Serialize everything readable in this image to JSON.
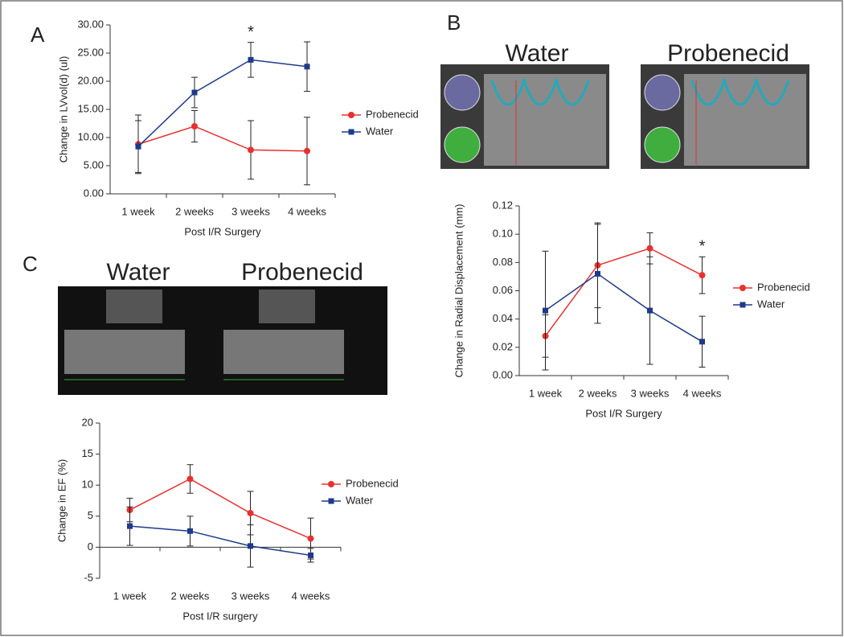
{
  "panels": {
    "labels": [
      "A",
      "B",
      "C"
    ],
    "b_images": [
      "Water",
      "Probenecid"
    ],
    "c_images": [
      "Water",
      "Probenecid"
    ]
  },
  "chart_data": [
    {
      "type": "line",
      "ylabel": "Change in LVvol(d) (ul)",
      "xlabel": "Post I/R Surgery",
      "categories": [
        "1 week",
        "2 weeks",
        "3 weeks",
        "4 weeks"
      ],
      "ylim": [
        0,
        30
      ],
      "yticks": [
        {
          "value": 0,
          "label": "0.00"
        },
        {
          "value": 5,
          "label": "5.00"
        },
        {
          "value": 10,
          "label": "10.00"
        },
        {
          "value": 15,
          "label": "15.00"
        },
        {
          "value": 20,
          "label": "20.00"
        },
        {
          "value": 25,
          "label": "25.00"
        },
        {
          "value": 30,
          "label": "30.00"
        }
      ],
      "legend": "right",
      "annotations": [
        {
          "text": "*",
          "x": "3 weeks"
        }
      ],
      "series": [
        {
          "name": "Probenecid",
          "color": "#e8312f",
          "marker": "circle",
          "values": [
            8.8,
            12.0,
            7.8,
            7.6
          ],
          "errors": [
            5.2,
            2.8,
            5.2,
            6.0
          ]
        },
        {
          "name": "Water",
          "color": "#1f3a8a",
          "marker": "square",
          "values": [
            8.4,
            18.0,
            23.8,
            22.6
          ],
          "errors": [
            4.6,
            2.7,
            3.1,
            4.4
          ]
        }
      ]
    },
    {
      "type": "line",
      "ylabel": "Change in Radial Displacement (mm)",
      "xlabel": "Post I/R Surgery",
      "categories": [
        "1 week",
        "2 weeks",
        "3 weeks",
        "4 weeks"
      ],
      "ylim": [
        0,
        0.12
      ],
      "yticks": [
        {
          "value": 0,
          "label": "0.00"
        },
        {
          "value": 0.02,
          "label": "0.02"
        },
        {
          "value": 0.04,
          "label": "0.04"
        },
        {
          "value": 0.06,
          "label": "0.06"
        },
        {
          "value": 0.08,
          "label": "0.08"
        },
        {
          "value": 0.1,
          "label": "0.10"
        },
        {
          "value": 0.12,
          "label": "0.12"
        }
      ],
      "legend": "right",
      "annotations": [
        {
          "text": "*",
          "x": "4 weeks"
        }
      ],
      "series": [
        {
          "name": "Probenecid",
          "color": "#e8312f",
          "marker": "circle",
          "values": [
            0.028,
            0.078,
            0.09,
            0.071
          ],
          "errors": [
            0.015,
            0.03,
            0.011,
            0.013
          ]
        },
        {
          "name": "Water",
          "color": "#1f3a8a",
          "marker": "square",
          "values": [
            0.046,
            0.072,
            0.046,
            0.024
          ],
          "errors": [
            0.042,
            0.035,
            0.038,
            0.018
          ]
        }
      ]
    },
    {
      "type": "line",
      "ylabel": "Change in EF (%)",
      "xlabel": "Post I/R surgery",
      "categories": [
        "1 week",
        "2 weeks",
        "3 weeks",
        "4 weeks"
      ],
      "ylim": [
        -5,
        20
      ],
      "yticks": [
        -5,
        0,
        5,
        10,
        15,
        20
      ],
      "legend": "right",
      "annotations": [],
      "series": [
        {
          "name": "Probenecid",
          "color": "#e8312f",
          "marker": "circle",
          "values": [
            6.0,
            11.0,
            5.5,
            1.4
          ],
          "errors": [
            1.9,
            2.3,
            3.5,
            3.3
          ]
        },
        {
          "name": "Water",
          "color": "#1f3a8a",
          "marker": "square",
          "values": [
            3.4,
            2.6,
            0.2,
            -1.3
          ],
          "errors": [
            3.1,
            2.4,
            3.4,
            1.1
          ]
        }
      ]
    }
  ]
}
